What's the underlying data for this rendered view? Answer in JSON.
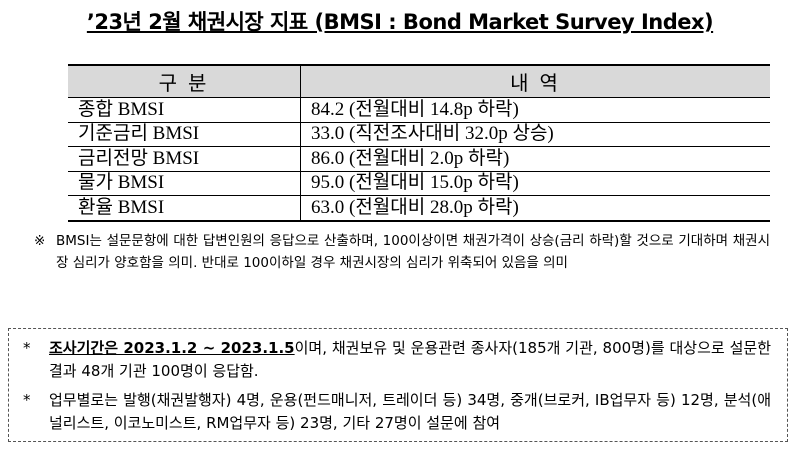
{
  "title": "’23년 2월 채권시장 지표 (BMSI : Bond Market Survey Index)",
  "table": {
    "header": [
      "구 분",
      "내 역"
    ],
    "rows": [
      [
        "종합 BMSI",
        "84.2 (전월대비 14.8p 하락)"
      ],
      [
        "기준금리 BMSI",
        "33.0 (직전조사대비 32.0p 상승)"
      ],
      [
        "금리전망 BMSI",
        "86.0 (전월대비 2.0p 하락)"
      ],
      [
        "물가 BMSI",
        "95.0 (전월대비 15.0p 하락)"
      ],
      [
        "환율 BMSI",
        "63.0 (전월대비 28.0p 하락)"
      ]
    ]
  },
  "note": {
    "mark": "※",
    "text": "BMSI는 설문문항에 대한 답변인원의 응답으로 산출하며, 100이상이면 채권가격이 상승(금리 하락)할 것으로 기대하며 채권시장 심리가 양호함을 의미. 반대로 100이하일 경우 채권시장의 심리가 위축되어 있음을 의미"
  },
  "box": {
    "items": [
      {
        "bullet": "*",
        "emphasis": "조사기간은 2023.1.2 ~ 2023.1.5",
        "text": "이며, 채권보유 및 운용관련 종사자(185개 기관, 800명)를 대상으로 설문한 결과 48개 기관 100명이 응답함."
      },
      {
        "bullet": "*",
        "text": "업무별로는 발행(채권발행자) 4명, 운용(펀드매니저, 트레이더 등) 34명, 중개(브로커, IB업무자 등) 12명, 분석(애널리스트, 이코노미스트, RM업무자 등) 23명, 기타 27명이 설문에 참여"
      }
    ]
  }
}
